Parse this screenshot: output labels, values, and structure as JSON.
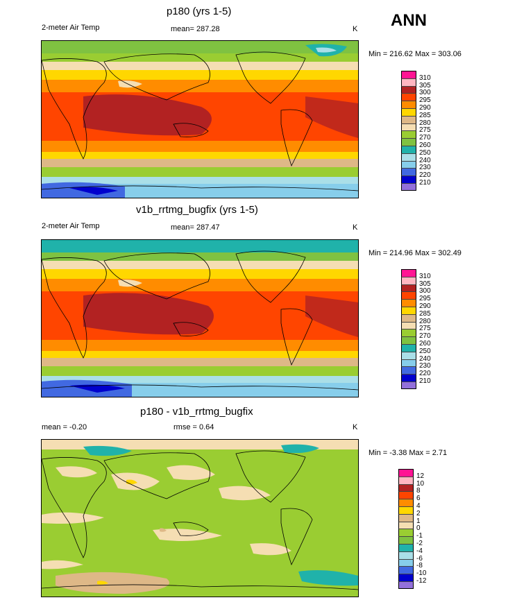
{
  "header": {
    "season": "ANN"
  },
  "chart_data": [
    {
      "type": "heatmap",
      "title": "p180 (yrs 1-5)",
      "left_label": "2-meter Air Temp",
      "center_label": "mean= 287.28",
      "unit": "K",
      "stats": "Min = 216.62 Max = 303.06",
      "levels": [
        "310",
        "305",
        "300",
        "295",
        "290",
        "285",
        "280",
        "275",
        "270",
        "260",
        "250",
        "240",
        "230",
        "220",
        "210"
      ],
      "colors": [
        "#ff1493",
        "#ffb6c1",
        "#b22222",
        "#ff4500",
        "#ff8c00",
        "#ffd700",
        "#deb887",
        "#f5deb3",
        "#9acd32",
        "#7fc241",
        "#20b2aa",
        "#aadfe8",
        "#87ceeb",
        "#4169e1",
        "#0000cd",
        "#9370db"
      ]
    },
    {
      "type": "heatmap",
      "title": "v1b_rrtmg_bugfix (yrs 1-5)",
      "left_label": "2-meter Air Temp",
      "center_label": "mean= 287.47",
      "unit": "K",
      "stats": "Min = 214.96 Max = 302.49",
      "levels": [
        "310",
        "305",
        "300",
        "295",
        "290",
        "285",
        "280",
        "275",
        "270",
        "260",
        "250",
        "240",
        "230",
        "220",
        "210"
      ],
      "colors": [
        "#ff1493",
        "#ffb6c1",
        "#b22222",
        "#ff4500",
        "#ff8c00",
        "#ffd700",
        "#deb887",
        "#f5deb3",
        "#9acd32",
        "#7fc241",
        "#20b2aa",
        "#aadfe8",
        "#87ceeb",
        "#4169e1",
        "#0000cd",
        "#9370db"
      ]
    },
    {
      "type": "heatmap",
      "title": "p180 - v1b_rrtmg_bugfix",
      "left_label": "mean =  -0.20",
      "center_label": "rmse =   0.64",
      "unit": "K",
      "stats": "Min =  -3.38 Max =   2.71",
      "levels": [
        "12",
        "10",
        "8",
        "6",
        "4",
        "2",
        "1",
        "0",
        "-1",
        "-2",
        "-4",
        "-6",
        "-8",
        "-10",
        "-12"
      ],
      "colors": [
        "#ff1493",
        "#ffb6c1",
        "#b22222",
        "#ff4500",
        "#ff8c00",
        "#ffd700",
        "#deb887",
        "#f5deb3",
        "#9acd32",
        "#7fc241",
        "#20b2aa",
        "#aadfe8",
        "#87ceeb",
        "#4169e1",
        "#0000cd",
        "#9370db"
      ]
    }
  ]
}
